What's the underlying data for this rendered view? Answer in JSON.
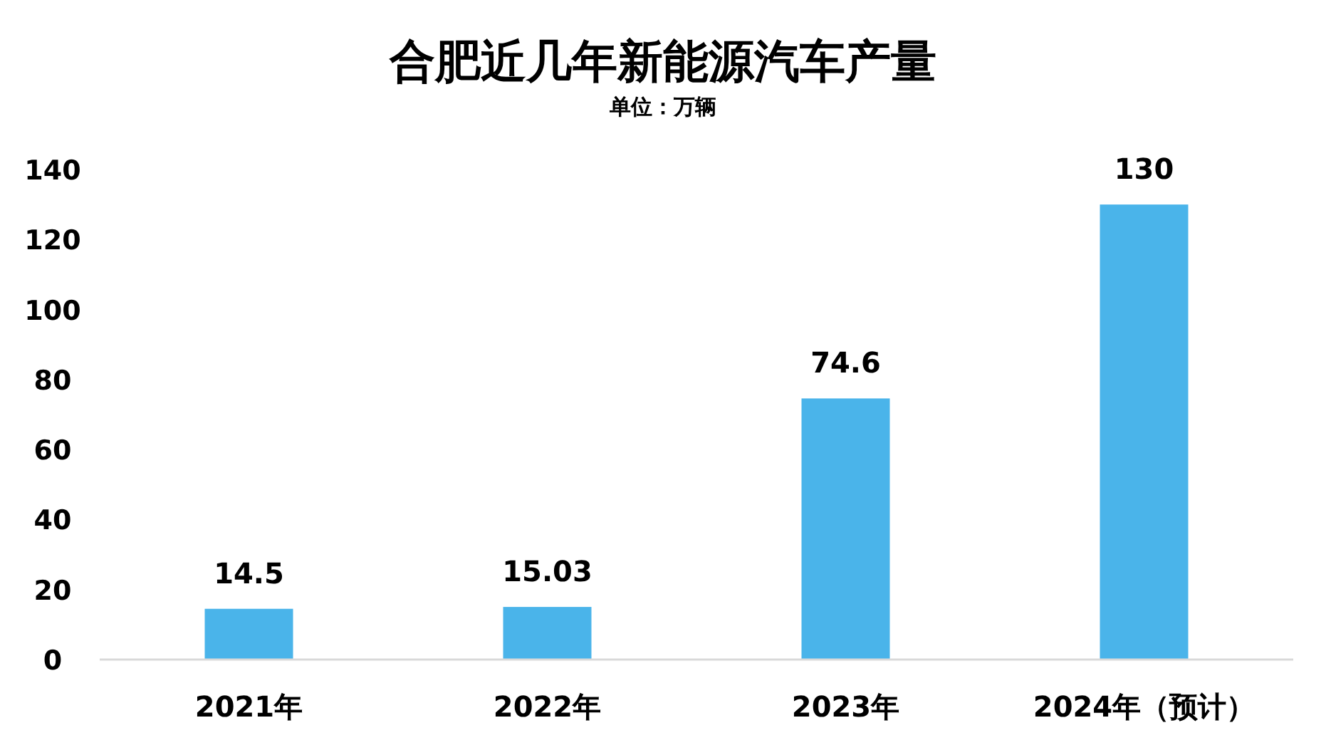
{
  "chart_data": {
    "type": "bar",
    "title": "合肥近几年新能源汽车产量",
    "subtitle": "单位：万辆",
    "categories": [
      "2021年",
      "2022年",
      "2023年",
      "2024年（预计）"
    ],
    "values": [
      14.5,
      15.03,
      74.6,
      130
    ],
    "color": "#4ab4ea",
    "ylim": [
      0,
      140
    ],
    "yticks": [
      0,
      20,
      40,
      60,
      80,
      100,
      120,
      140
    ],
    "data_labels": true
  }
}
